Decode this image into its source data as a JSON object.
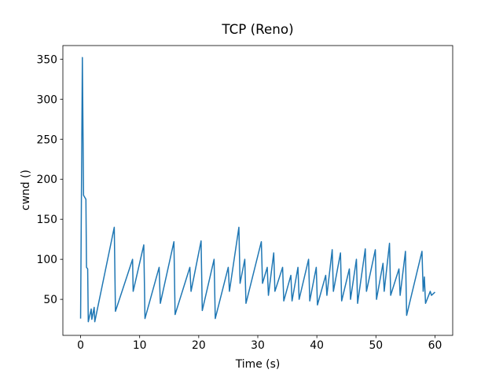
{
  "chart_data": {
    "type": "line",
    "title": "TCP (Reno)",
    "x_label": "Time (s)",
    "y_label": "cwnd ()",
    "xlim": [
      -3,
      63
    ],
    "ylim": [
      5,
      367
    ],
    "xticks": [
      0,
      10,
      20,
      30,
      40,
      50,
      60
    ],
    "yticks": [
      50,
      100,
      150,
      200,
      250,
      300,
      350
    ],
    "series": [
      {
        "color": "#1f77b4",
        "x": [
          0,
          0.3,
          0.5,
          0.9,
          1.0,
          1.2,
          1.3,
          1.8,
          1.9,
          2.3,
          2.4,
          5.7,
          5.9,
          8.8,
          8.9,
          10.7,
          10.9,
          13.3,
          13.5,
          15.8,
          16.0,
          18.5,
          18.7,
          20.4,
          20.6,
          22.6,
          22.8,
          25.0,
          25.2,
          26.8,
          27.0,
          27.8,
          28.0,
          30.6,
          30.8,
          31.6,
          31.8,
          32.7,
          32.9,
          34.2,
          34.4,
          35.6,
          35.8,
          36.8,
          37.0,
          38.6,
          38.8,
          39.9,
          40.1,
          41.5,
          41.7,
          42.6,
          42.8,
          44.0,
          44.2,
          45.5,
          45.7,
          46.7,
          46.9,
          48.2,
          48.4,
          49.9,
          50.1,
          51.2,
          51.4,
          52.3,
          52.5,
          53.9,
          54.1,
          55.0,
          55.2,
          57.8,
          58.0,
          58.2,
          58.4,
          59.2,
          59.4,
          60.0
        ],
        "values": [
          26,
          352,
          180,
          175,
          90,
          88,
          22,
          38,
          25,
          40,
          22,
          140,
          35,
          100,
          60,
          118,
          26,
          90,
          45,
          122,
          31,
          90,
          60,
          123,
          36,
          100,
          26,
          90,
          60,
          140,
          70,
          100,
          45,
          122,
          70,
          90,
          55,
          108,
          60,
          90,
          48,
          80,
          48,
          90,
          50,
          100,
          48,
          90,
          43,
          80,
          55,
          112,
          60,
          108,
          48,
          88,
          50,
          100,
          45,
          113,
          60,
          112,
          50,
          95,
          60,
          120,
          55,
          88,
          55,
          110,
          30,
          110,
          60,
          78,
          45,
          60,
          55,
          59
        ]
      }
    ]
  }
}
